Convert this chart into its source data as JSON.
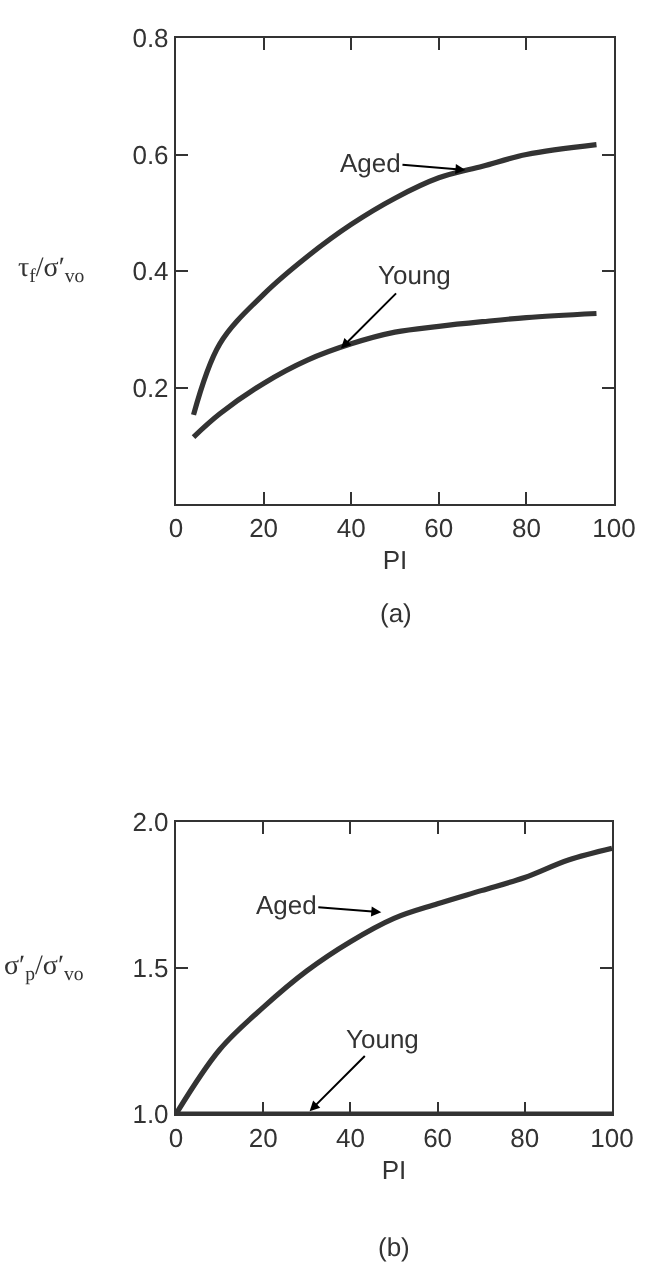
{
  "chart_data": [
    {
      "type": "line",
      "xlabel": "PI",
      "ylabel": "τ$_{f}$/σ′$_{vo}$",
      "xlim": [
        0,
        100
      ],
      "xticks": [
        0,
        20,
        40,
        60,
        80,
        100
      ],
      "ylim": [
        0,
        0.8
      ],
      "yticks": [
        0.2,
        0.4,
        0.6,
        0.8
      ],
      "grid": false,
      "marker": "none",
      "line_style": "solid",
      "series": [
        {
          "color": "#333333",
          "x": [
            4,
            10,
            20,
            30,
            40,
            50,
            60,
            70,
            80,
            96
          ],
          "values": [
            0.153,
            0.275,
            0.36,
            0.425,
            0.48,
            0.525,
            0.56,
            0.58,
            0.6,
            0.617
          ]
        },
        {
          "color": "#333333",
          "x": [
            4,
            10,
            20,
            30,
            40,
            50,
            60,
            70,
            80,
            96
          ],
          "values": [
            0.115,
            0.155,
            0.207,
            0.247,
            0.275,
            0.295,
            0.305,
            0.313,
            0.32,
            0.327
          ]
        }
      ],
      "annotations": [
        {
          "text": "Aged",
          "x": 67,
          "y": 0.573
        },
        {
          "text": "Young",
          "x": 37,
          "y": 0.262
        },
        "(a)"
      ]
    },
    {
      "type": "line",
      "xlabel": "PI",
      "ylabel": "σ′$_{p}$/σ′$_{vo}$",
      "xlim": [
        0,
        100
      ],
      "xticks": [
        0,
        20,
        40,
        60,
        80,
        100
      ],
      "ylim": [
        1,
        2
      ],
      "yticks": [
        {
          "value": 1,
          "label": "1.0"
        },
        1.5,
        {
          "value": 2,
          "label": "2.0"
        }
      ],
      "grid": false,
      "marker": "none",
      "line_style": "solid",
      "series": [
        {
          "color": "#333333",
          "x": [
            0,
            10,
            20,
            30,
            40,
            50,
            60,
            70,
            80,
            90,
            100
          ],
          "values": [
            1.0,
            1.22,
            1.365,
            1.49,
            1.59,
            1.67,
            1.72,
            1.765,
            1.81,
            1.87,
            1.91
          ]
        },
        {
          "color": "#333333",
          "x": [
            0,
            100
          ],
          "values": [
            1.0,
            1.0
          ]
        }
      ],
      "annotations": [
        {
          "text": "Aged",
          "x": 48,
          "y": 1.69
        },
        {
          "text": "Young",
          "x": 30,
          "y": 1.0
        },
        "(b)"
      ]
    }
  ]
}
